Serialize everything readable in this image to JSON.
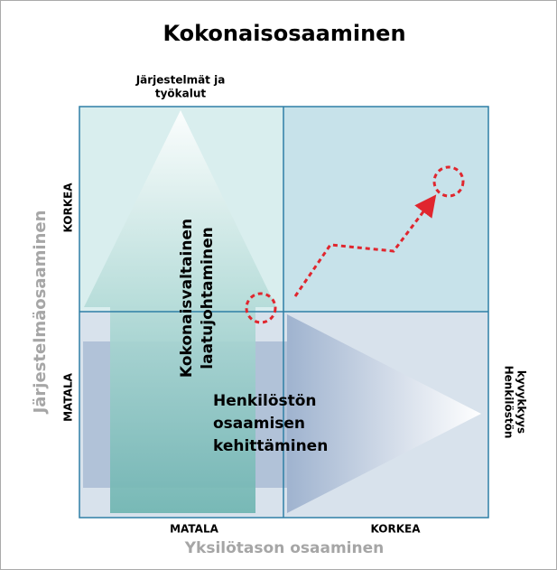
{
  "title": "Kokonaisosaaminen",
  "top_label": [
    "Järjestelmät ja",
    "työkalut"
  ],
  "right_label": [
    "Henkilöstön",
    "kyvykkyys"
  ],
  "y_axis": {
    "title": "Järjestelmäosaaminen",
    "high": "KORKEA",
    "low": "MATALA"
  },
  "x_axis": {
    "title": "Yksilötason osaaminen",
    "low": "MATALA",
    "high": "KORKEA"
  },
  "up_arrow_label": [
    "Kokonaisvaltainen",
    "laatujohtaminen"
  ],
  "right_arrow_label": [
    "Henkilöstön",
    "osaamisen",
    "kehittäminen"
  ]
}
